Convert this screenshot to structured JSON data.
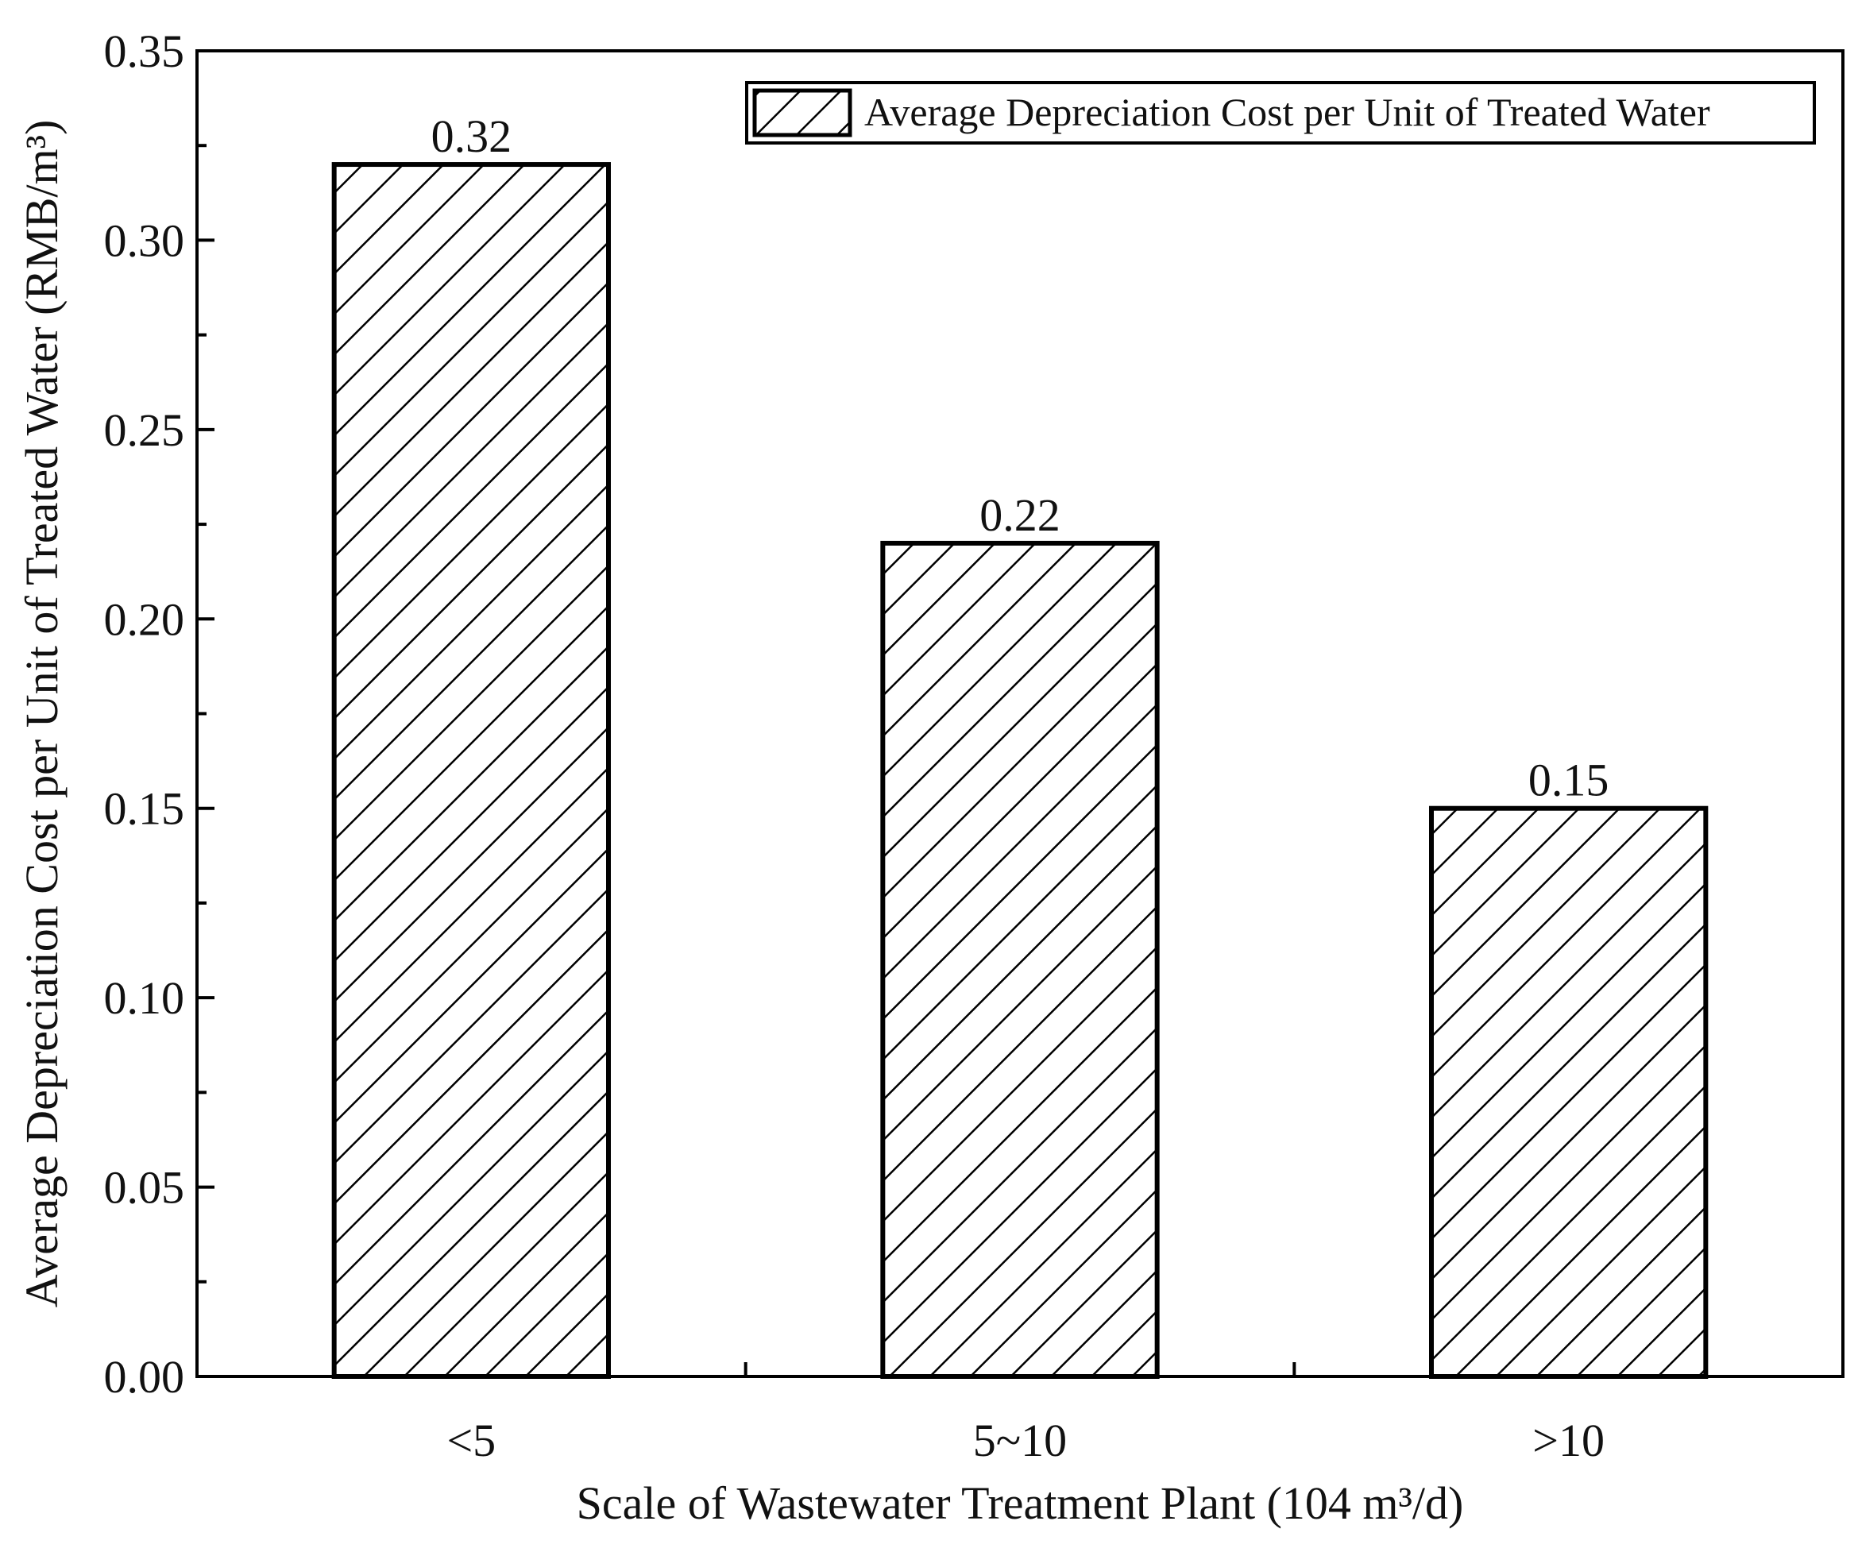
{
  "chart_data": {
    "type": "bar",
    "title": "",
    "xlabel": "Scale of Wastewater Treatment Plant (104 m³/d)",
    "ylabel": "Average Depreciation Cost per Unit of Treated Water (RMB/m³)",
    "categories": [
      "<5",
      "5~10",
      ">10"
    ],
    "series": [
      {
        "name": "Average Depreciation Cost per Unit of Treated Water",
        "values": [
          0.32,
          0.22,
          0.15
        ],
        "pattern": "diagonal-hatch",
        "color": "#000000"
      }
    ],
    "data_labels": [
      "0.32",
      "0.22",
      "0.15"
    ],
    "ylim": [
      0,
      0.35
    ],
    "yticks": [
      0.0,
      0.05,
      0.1,
      0.15,
      0.2,
      0.25,
      0.3,
      0.35
    ],
    "ytick_labels": [
      "0.00",
      "0.05",
      "0.10",
      "0.15",
      "0.20",
      "0.25",
      "0.30",
      "0.35"
    ],
    "minor_yticks": true,
    "grid": false,
    "legend_position": "top-right"
  }
}
